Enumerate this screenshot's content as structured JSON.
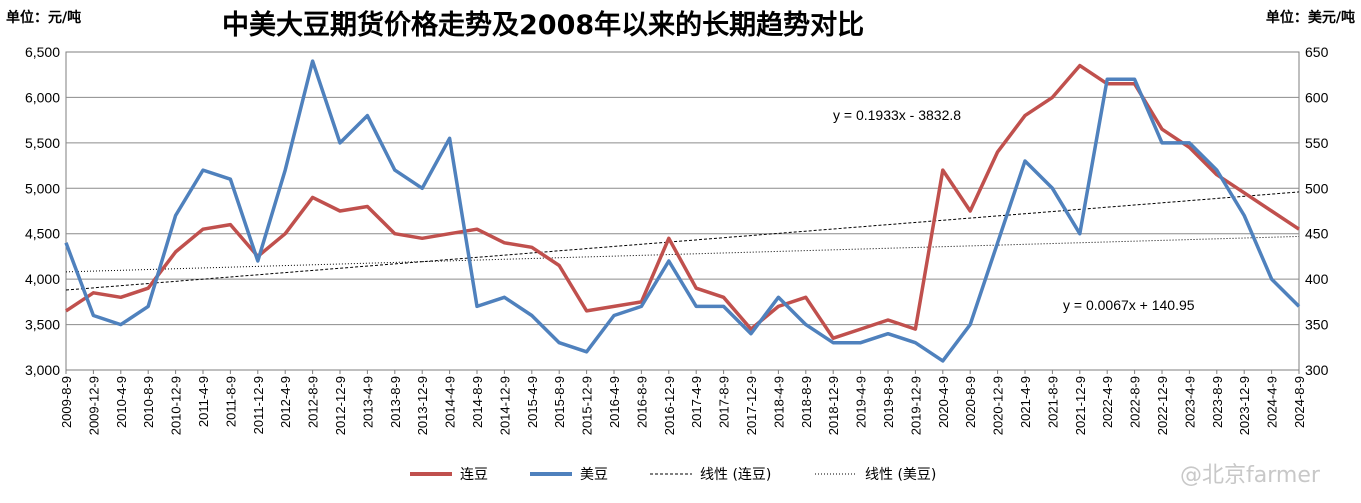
{
  "chart_data": {
    "type": "line",
    "title": "中美大豆期货价格走势及2008年以来的长期趋势对比",
    "left_unit": "单位：元/吨",
    "right_unit": "单位：美元/吨",
    "y_left": {
      "min": 3000,
      "max": 6500,
      "ticks": [
        "3,000",
        "3,500",
        "4,000",
        "4,500",
        "5,000",
        "5,500",
        "6,000",
        "6,500"
      ]
    },
    "y_right": {
      "min": 300,
      "max": 650,
      "ticks": [
        "300",
        "350",
        "400",
        "450",
        "500",
        "550",
        "600",
        "650"
      ]
    },
    "x_labels": [
      "2009-8-9",
      "2009-12-9",
      "2010-4-9",
      "2010-8-9",
      "2010-12-9",
      "2011-4-9",
      "2011-8-9",
      "2011-12-9",
      "2012-4-9",
      "2012-8-9",
      "2012-12-9",
      "2013-4-9",
      "2013-8-9",
      "2013-12-9",
      "2014-4-9",
      "2014-8-9",
      "2014-12-9",
      "2015-4-9",
      "2015-8-9",
      "2015-12-9",
      "2016-4-9",
      "2016-8-9",
      "2016-12-9",
      "2017-4-9",
      "2017-8-9",
      "2017-12-9",
      "2018-4-9",
      "2018-8-9",
      "2018-12-9",
      "2019-4-9",
      "2019-8-9",
      "2019-12-9",
      "2020-4-9",
      "2020-8-9",
      "2020-12-9",
      "2021-4-9",
      "2021-8-9",
      "2021-12-9",
      "2022-4-9",
      "2022-8-9",
      "2022-12-9",
      "2023-4-9",
      "2023-8-9",
      "2023-12-9",
      "2024-4-9",
      "2024-8-9"
    ],
    "series": [
      {
        "name": "连豆",
        "axis": "left",
        "color": "#c0504d",
        "values": [
          3650,
          3850,
          3800,
          3900,
          4300,
          4550,
          4600,
          4250,
          4500,
          4900,
          4750,
          4800,
          4500,
          4450,
          4500,
          4550,
          4400,
          4350,
          4150,
          3650,
          3700,
          3750,
          4450,
          3900,
          3800,
          3450,
          3700,
          3800,
          3350,
          3450,
          3550,
          3450,
          5200,
          4750,
          5400,
          5800,
          6000,
          6350,
          6150,
          6150,
          5650,
          5450,
          5150,
          4950,
          4750,
          4550
        ]
      },
      {
        "name": "美豆",
        "axis": "right",
        "color": "#4f81bd",
        "values": [
          440,
          360,
          350,
          370,
          470,
          520,
          510,
          420,
          520,
          640,
          550,
          580,
          520,
          500,
          555,
          370,
          380,
          360,
          330,
          320,
          360,
          370,
          420,
          370,
          370,
          340,
          380,
          350,
          330,
          330,
          340,
          330,
          310,
          350,
          440,
          530,
          500,
          450,
          620,
          620,
          550,
          550,
          520,
          470,
          400,
          370
        ]
      }
    ],
    "trendlines": [
      {
        "name": "线性 (连豆)",
        "equation": "y = 0.1933x - 3832.8",
        "axis": "left",
        "start": 3880,
        "end": 4960
      },
      {
        "name": "线性 (美豆)",
        "equation": "y = 0.0067x + 140.95",
        "axis": "right",
        "start": 408,
        "end": 447
      }
    ],
    "legend": {
      "position": "bottom",
      "items": [
        "连豆",
        "美豆",
        "线性 (连豆)",
        "线性 (美豆)"
      ]
    },
    "grid": true
  },
  "watermark": "@北京farmer"
}
